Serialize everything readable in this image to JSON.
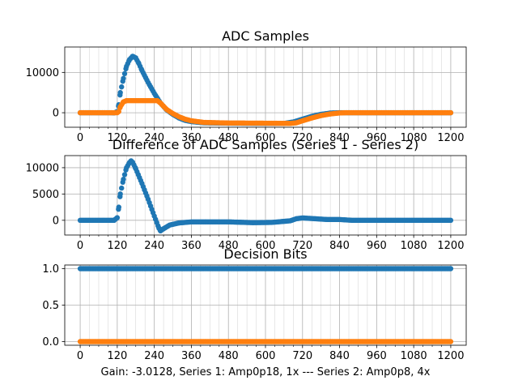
{
  "figure": {
    "caption": "Gain: -3.0128, Series 1: Amp0p18, 1x --- Series 2: Amp0p8, 4x"
  },
  "colors": {
    "series1": "#1f77b4",
    "series2": "#ff7f0e",
    "grid": "#b0b0b0",
    "axis": "#000000"
  },
  "chart_data": [
    {
      "type": "scatter",
      "title": "ADC Samples",
      "xlabel": "",
      "ylabel": "",
      "xlim": [
        -50,
        1250
      ],
      "ylim": [
        -3600,
        16300
      ],
      "xticks": [
        0,
        120,
        240,
        360,
        480,
        600,
        720,
        840,
        960,
        1080,
        1200
      ],
      "yticks": [
        0,
        10000
      ],
      "grid": true,
      "series": [
        {
          "color_key": "series1",
          "points": [
            [
              0,
              0
            ],
            [
              100,
              0
            ],
            [
              110,
              -50
            ],
            [
              120,
              300
            ],
            [
              125,
              2000
            ],
            [
              130,
              5000
            ],
            [
              140,
              8500
            ],
            [
              150,
              11500
            ],
            [
              160,
              13200
            ],
            [
              170,
              14000
            ],
            [
              180,
              13600
            ],
            [
              190,
              12200
            ],
            [
              200,
              10500
            ],
            [
              220,
              7500
            ],
            [
              240,
              4800
            ],
            [
              260,
              2400
            ],
            [
              280,
              700
            ],
            [
              300,
              -400
            ],
            [
              320,
              -1300
            ],
            [
              340,
              -1900
            ],
            [
              360,
              -2200
            ],
            [
              400,
              -2500
            ],
            [
              480,
              -2600
            ],
            [
              600,
              -2650
            ],
            [
              660,
              -2650
            ],
            [
              690,
              -2300
            ],
            [
              720,
              -1600
            ],
            [
              750,
              -900
            ],
            [
              780,
              -400
            ],
            [
              810,
              -80
            ],
            [
              840,
              0
            ],
            [
              1200,
              0
            ]
          ]
        },
        {
          "color_key": "series2",
          "points": [
            [
              0,
              0
            ],
            [
              120,
              0
            ],
            [
              125,
              300
            ],
            [
              130,
              1500
            ],
            [
              140,
              2700
            ],
            [
              150,
              3000
            ],
            [
              250,
              3000
            ],
            [
              260,
              2400
            ],
            [
              270,
              1600
            ],
            [
              280,
              800
            ],
            [
              300,
              -200
            ],
            [
              320,
              -1000
            ],
            [
              340,
              -1600
            ],
            [
              360,
              -2000
            ],
            [
              400,
              -2400
            ],
            [
              480,
              -2550
            ],
            [
              600,
              -2600
            ],
            [
              680,
              -2650
            ],
            [
              700,
              -2500
            ],
            [
              720,
              -2000
            ],
            [
              750,
              -1300
            ],
            [
              780,
              -700
            ],
            [
              810,
              -300
            ],
            [
              840,
              -60
            ],
            [
              860,
              0
            ],
            [
              1200,
              0
            ]
          ]
        }
      ]
    },
    {
      "type": "scatter",
      "title": "Difference of ADC Samples (Series 1 - Series 2)",
      "xlabel": "",
      "ylabel": "",
      "xlim": [
        -50,
        1250
      ],
      "ylim": [
        -2800,
        12300
      ],
      "xticks": [
        0,
        120,
        240,
        360,
        480,
        600,
        720,
        840,
        960,
        1080,
        1200
      ],
      "yticks": [
        0,
        5000,
        10000
      ],
      "grid": true,
      "series": [
        {
          "color_key": "series1",
          "points": [
            [
              0,
              0
            ],
            [
              110,
              0
            ],
            [
              120,
              500
            ],
            [
              125,
              2500
            ],
            [
              130,
              5000
            ],
            [
              140,
              7800
            ],
            [
              150,
              10000
            ],
            [
              160,
              11000
            ],
            [
              165,
              11300
            ],
            [
              170,
              11000
            ],
            [
              180,
              9800
            ],
            [
              200,
              7000
            ],
            [
              220,
              4000
            ],
            [
              240,
              800
            ],
            [
              255,
              -1500
            ],
            [
              260,
              -2000
            ],
            [
              270,
              -1600
            ],
            [
              290,
              -900
            ],
            [
              320,
              -500
            ],
            [
              360,
              -300
            ],
            [
              480,
              -300
            ],
            [
              560,
              -450
            ],
            [
              620,
              -400
            ],
            [
              680,
              -100
            ],
            [
              700,
              300
            ],
            [
              720,
              450
            ],
            [
              760,
              300
            ],
            [
              800,
              150
            ],
            [
              840,
              150
            ],
            [
              880,
              0
            ],
            [
              1200,
              0
            ]
          ]
        }
      ]
    },
    {
      "type": "scatter",
      "title": "Decision Bits",
      "xlabel": "Gain: -3.0128, Series 1: Amp0p18, 1x --- Series 2: Amp0p8, 4x",
      "ylabel": "",
      "xlim": [
        -50,
        1250
      ],
      "ylim": [
        -0.05,
        1.05
      ],
      "xticks": [
        0,
        120,
        240,
        360,
        480,
        600,
        720,
        840,
        960,
        1080,
        1200
      ],
      "yticks": [
        0.0,
        0.5,
        1.0
      ],
      "grid": true,
      "series": [
        {
          "color_key": "series1",
          "points": [
            [
              0,
              1
            ],
            [
              1200,
              1
            ]
          ]
        },
        {
          "color_key": "series2",
          "points": [
            [
              0,
              0
            ],
            [
              1200,
              0
            ]
          ]
        }
      ]
    }
  ]
}
